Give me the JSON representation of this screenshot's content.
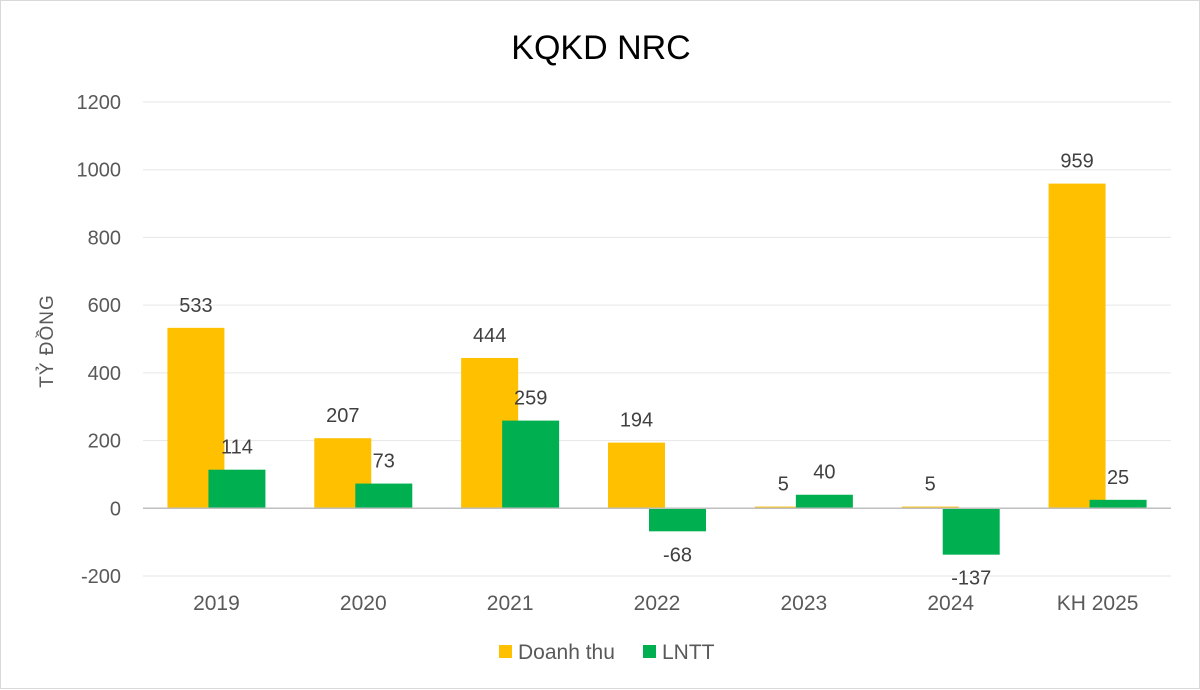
{
  "chart_data": {
    "type": "bar",
    "title": "KQKD NRC",
    "xlabel": "",
    "ylabel": "TỶ ĐỒNG",
    "categories": [
      "2019",
      "2020",
      "2021",
      "2022",
      "2023",
      "2024",
      "KH 2025"
    ],
    "series": [
      {
        "name": "Doanh thu",
        "color": "#FFC000",
        "values": [
          533,
          207,
          444,
          194,
          5,
          5,
          959
        ],
        "labels": [
          "533",
          "207",
          "444",
          "194",
          "5",
          "5",
          "959"
        ]
      },
      {
        "name": "LNTT",
        "color": "#00B050",
        "values": [
          114,
          73,
          259,
          -68,
          40,
          -137,
          25
        ],
        "labels": [
          "114",
          "73",
          "259",
          "-68",
          "40",
          "-137",
          "25"
        ]
      }
    ],
    "ylim": [
      -200,
      1200
    ],
    "yticks": [
      -200,
      0,
      200,
      400,
      600,
      800,
      1000,
      1200
    ],
    "ytick_labels": [
      "-200",
      "0",
      "200",
      "400",
      "600",
      "800",
      "1000",
      "1200"
    ],
    "grid": true,
    "legend_position": "bottom"
  }
}
